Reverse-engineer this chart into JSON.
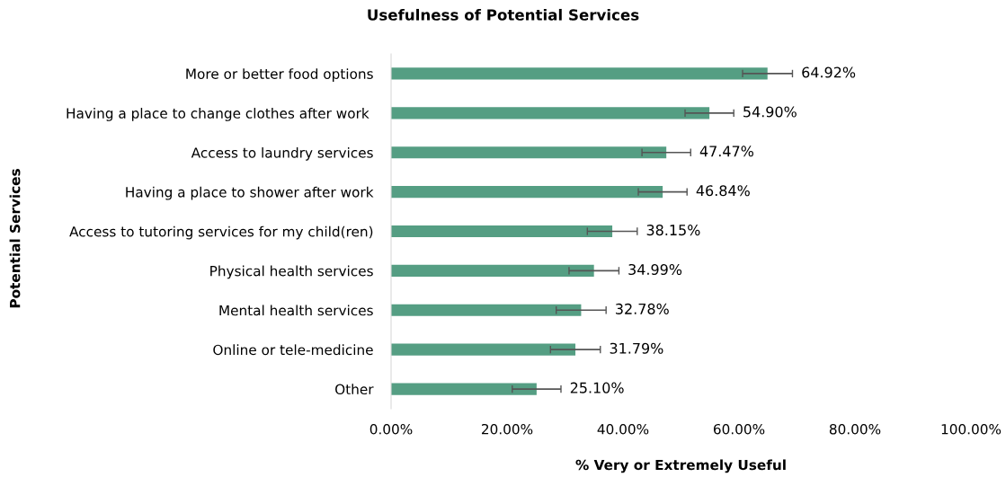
{
  "chart_data": {
    "type": "bar",
    "orientation": "horizontal",
    "title": "Usefulness of Potential Services",
    "xlabel": "% Very or Extremely Useful",
    "ylabel": "Potential Services",
    "categories": [
      "More or better food options",
      "Having a place to change clothes after work ",
      "Access to laundry services",
      "Having a place to shower after work",
      "Access to tutoring services for my child(ren)",
      "Physical health services",
      "Mental health services",
      "Online or tele-medicine",
      "Other"
    ],
    "values": [
      64.92,
      54.9,
      47.47,
      46.84,
      38.15,
      34.99,
      32.78,
      31.79,
      25.1
    ],
    "errors": [
      4.3,
      4.2,
      4.2,
      4.2,
      4.3,
      4.3,
      4.3,
      4.3,
      4.2
    ],
    "value_labels": [
      "64.92%",
      "54.90%",
      "47.47%",
      "46.84%",
      "38.15%",
      "34.99%",
      "32.78%",
      "31.79%",
      "25.10%"
    ],
    "color": "#559e83",
    "xlim": [
      0,
      100
    ],
    "xticks": [
      {
        "value": 0,
        "label": "0.00%"
      },
      {
        "value": 20,
        "label": "20.00%"
      },
      {
        "value": 40,
        "label": "40.00%"
      },
      {
        "value": 60,
        "label": "60.00%"
      },
      {
        "value": 80,
        "label": "80.00%"
      },
      {
        "value": 100,
        "label": "100.00%"
      }
    ],
    "grid": false,
    "legend": false
  }
}
